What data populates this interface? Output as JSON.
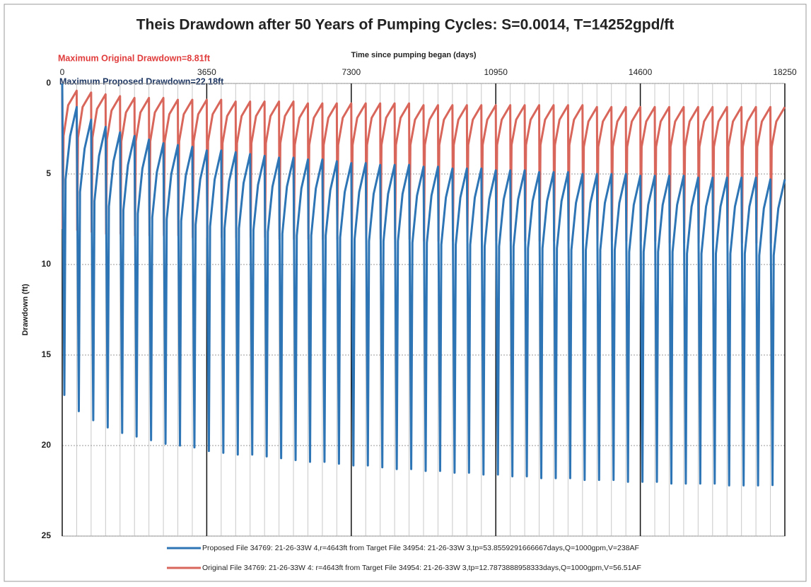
{
  "chart_data": {
    "type": "line",
    "title": "Theis Drawdown after 50 Years of Pumping Cycles: S=0.0014, T=14252gpd/ft",
    "x_label": "Time since pumping began (days)",
    "y_label": "Drawdown (ft)",
    "annotations": [
      {
        "text": "Maximum Original Drawdown=8.81ft",
        "color": "#e03c3c"
      },
      {
        "text": "Maximum Proposed Drawdown=22.18ft",
        "color": "#1f3864"
      }
    ],
    "xlim": [
      0,
      18250
    ],
    "xticks": [
      0,
      3650,
      7300,
      10950,
      14600,
      18250
    ],
    "ylim": [
      25,
      0
    ],
    "yticks": [
      0,
      5,
      10,
      15,
      20,
      25
    ],
    "grid": true,
    "minor_grid_interval": 365,
    "legend": "bottom",
    "series": [
      {
        "name": "Proposed File 34769: 21-26-33W  4,r=4643ft from Target File 34954: 21-26-33W 3,tp=53.8559291666667days,Q=1000gpm,V=238AF",
        "color": "#2e75b6",
        "x": [
          0,
          54,
          84,
          200,
          365,
          419,
          449,
          565,
          730,
          784,
          814,
          930,
          1095,
          1149,
          1179,
          1295,
          1460,
          1514,
          1544,
          1660,
          1825,
          1879,
          1909,
          2025,
          2190,
          2244,
          2274,
          2390,
          2555,
          2609,
          2639,
          2755,
          2920,
          2974,
          3004,
          3120,
          3285,
          3339,
          3369,
          3485,
          3650,
          3704,
          3734,
          3850,
          4015,
          4069,
          4099,
          4215,
          4380,
          4434,
          4464,
          4580,
          4745,
          4799,
          4829,
          4945,
          5110,
          5164,
          5194,
          5310,
          5475,
          5529,
          5559,
          5675,
          5840,
          5894,
          5924,
          6040,
          6205,
          6259,
          6289,
          6405,
          6570,
          6624,
          6654,
          6770,
          6935,
          6989,
          7019,
          7135,
          7300,
          7354,
          7384,
          7500,
          7665,
          7719,
          7749,
          7865,
          8030,
          8084,
          8114,
          8230,
          8395,
          8449,
          8479,
          8595,
          8760,
          8814,
          8844,
          8960,
          9125,
          9179,
          9209,
          9325,
          9490,
          9544,
          9574,
          9690,
          9855,
          9909,
          9939,
          10055,
          10220,
          10274,
          10304,
          10420,
          10585,
          10639,
          10669,
          10785,
          10950,
          11004,
          11034,
          11150,
          11315,
          11369,
          11399,
          11515,
          11680,
          11734,
          11764,
          11880,
          12045,
          12099,
          12129,
          12245,
          12410,
          12464,
          12494,
          12610,
          12775,
          12829,
          12859,
          12975,
          13140,
          13194,
          13224,
          13340,
          13505,
          13559,
          13589,
          13705,
          13870,
          13924,
          13954,
          14070,
          14235,
          14289,
          14319,
          14435,
          14600,
          14654,
          14684,
          14800,
          14965,
          15019,
          15049,
          15165,
          15330,
          15384,
          15414,
          15530,
          15695,
          15749,
          15779,
          15895,
          16060,
          16114,
          16144,
          16260,
          16425,
          16479,
          16509,
          16625,
          16790,
          16844,
          16874,
          16990,
          17155,
          17209,
          17239,
          17355,
          17520,
          17574,
          17604,
          17720,
          17885,
          17939,
          17969,
          18085,
          18250
        ],
        "values": [
          0,
          17.2,
          5.3,
          2.9,
          1.3,
          18.1,
          6.0,
          3.6,
          2.0,
          18.6,
          6.5,
          4.0,
          2.4,
          19.0,
          6.8,
          4.3,
          2.7,
          19.3,
          7.0,
          4.5,
          2.9,
          19.5,
          7.2,
          4.7,
          3.1,
          19.7,
          7.4,
          4.9,
          3.3,
          19.9,
          7.5,
          5.0,
          3.4,
          20.0,
          7.6,
          5.1,
          3.5,
          20.1,
          7.8,
          5.3,
          3.7,
          20.3,
          7.9,
          5.3,
          3.7,
          20.4,
          8.0,
          5.4,
          3.8,
          20.5,
          8.0,
          5.5,
          3.9,
          20.5,
          8.1,
          5.6,
          4.0,
          20.6,
          8.2,
          5.7,
          4.1,
          20.7,
          8.3,
          5.7,
          4.1,
          20.8,
          8.4,
          5.8,
          4.2,
          20.9,
          8.4,
          5.8,
          4.2,
          20.9,
          8.4,
          5.9,
          4.3,
          21.0,
          8.5,
          6.0,
          4.4,
          21.1,
          8.6,
          6.0,
          4.4,
          21.1,
          8.7,
          6.1,
          4.5,
          21.2,
          8.7,
          6.1,
          4.5,
          21.3,
          8.7,
          6.1,
          4.5,
          21.3,
          8.8,
          6.2,
          4.6,
          21.4,
          8.8,
          6.2,
          4.6,
          21.4,
          8.9,
          6.3,
          4.7,
          21.5,
          8.9,
          6.3,
          4.7,
          21.5,
          8.9,
          6.3,
          4.7,
          21.6,
          9.0,
          6.4,
          4.8,
          21.6,
          9.0,
          6.4,
          4.8,
          21.7,
          9.0,
          6.4,
          4.8,
          21.7,
          9.1,
          6.5,
          4.9,
          21.8,
          9.1,
          6.5,
          4.9,
          21.8,
          9.1,
          6.5,
          4.9,
          21.8,
          9.2,
          6.6,
          5.0,
          21.9,
          9.2,
          6.6,
          5.0,
          21.9,
          9.2,
          6.6,
          5.0,
          21.9,
          9.2,
          6.6,
          5.0,
          22.0,
          9.3,
          6.7,
          5.1,
          22.0,
          9.3,
          6.7,
          5.1,
          22.0,
          9.3,
          6.7,
          5.1,
          22.1,
          9.3,
          6.7,
          5.1,
          22.1,
          9.4,
          6.8,
          5.2,
          22.1,
          9.4,
          6.8,
          5.2,
          22.1,
          9.4,
          6.8,
          5.2,
          22.2,
          9.4,
          6.8,
          5.2,
          22.2,
          9.4,
          6.8,
          5.2,
          22.2,
          9.5,
          6.9,
          5.3,
          22.18,
          9.5,
          6.9,
          5.3
        ]
      },
      {
        "name": "Original File 34769: 21-26-33W  4: r=4643ft from Target File 34954: 21-26-33W 3,tp=12.7873888958333days,Q=1000gpm,V=56.51AF",
        "color": "#d9665b",
        "x": [
          0,
          13,
          33,
          150,
          365,
          378,
          398,
          515,
          730,
          743,
          763,
          880,
          1095,
          1108,
          1128,
          1245,
          1460,
          1473,
          1493,
          1610,
          1825,
          1838,
          1858,
          1975,
          2190,
          2203,
          2223,
          2340,
          2555,
          2568,
          2588,
          2705,
          2920,
          2933,
          2953,
          3070,
          3285,
          3298,
          3318,
          3435,
          3650,
          3663,
          3683,
          3800,
          4015,
          4028,
          4048,
          4165,
          4380,
          4393,
          4413,
          4530,
          4745,
          4758,
          4778,
          4895,
          5110,
          5123,
          5143,
          5260,
          5475,
          5488,
          5508,
          5625,
          5840,
          5853,
          5873,
          5990,
          6205,
          6218,
          6238,
          6355,
          6570,
          6583,
          6603,
          6720,
          6935,
          6948,
          6968,
          7085,
          7300,
          7313,
          7333,
          7450,
          7665,
          7678,
          7698,
          7815,
          8030,
          8043,
          8063,
          8180,
          8395,
          8408,
          8428,
          8545,
          8760,
          8773,
          8793,
          8910,
          9125,
          9138,
          9158,
          9275,
          9490,
          9503,
          9523,
          9640,
          9855,
          9868,
          9888,
          10005,
          10220,
          10233,
          10253,
          10370,
          10585,
          10598,
          10618,
          10735,
          10950,
          10963,
          10983,
          11100,
          11315,
          11328,
          11348,
          11465,
          11680,
          11693,
          11713,
          11830,
          12045,
          12058,
          12078,
          12195,
          12410,
          12423,
          12443,
          12560,
          12775,
          12788,
          12808,
          12925,
          13140,
          13153,
          13173,
          13290,
          13505,
          13518,
          13538,
          13655,
          13870,
          13883,
          13903,
          14020,
          14235,
          14248,
          14268,
          14385,
          14600,
          14613,
          14633,
          14750,
          14965,
          14978,
          14998,
          15115,
          15330,
          15343,
          15363,
          15480,
          15695,
          15708,
          15728,
          15845,
          16060,
          16073,
          16093,
          16210,
          16425,
          16438,
          16458,
          16575,
          16790,
          16803,
          16823,
          16940,
          17155,
          17168,
          17188,
          17305,
          17520,
          17533,
          17553,
          17670,
          17885,
          17898,
          17918,
          18035,
          18250
        ],
        "values": [
          0,
          8.0,
          2.9,
          1.2,
          0.4,
          8.1,
          3.0,
          1.3,
          0.5,
          8.2,
          3.0,
          1.4,
          0.6,
          8.3,
          3.1,
          1.5,
          0.7,
          8.3,
          3.2,
          1.6,
          0.8,
          8.4,
          3.2,
          1.6,
          0.8,
          8.4,
          3.2,
          1.6,
          0.8,
          8.4,
          3.2,
          1.7,
          0.9,
          8.4,
          3.2,
          1.7,
          0.9,
          8.5,
          3.2,
          1.7,
          0.9,
          8.5,
          3.2,
          1.7,
          0.9,
          8.5,
          3.3,
          1.8,
          1.0,
          8.5,
          3.3,
          1.8,
          1.0,
          8.5,
          3.3,
          1.8,
          1.0,
          8.5,
          3.3,
          1.8,
          1.0,
          8.6,
          3.3,
          1.8,
          1.0,
          8.6,
          3.4,
          1.9,
          1.1,
          8.6,
          3.4,
          1.9,
          1.1,
          8.6,
          3.4,
          1.9,
          1.1,
          8.6,
          3.4,
          1.9,
          1.1,
          8.6,
          3.4,
          1.9,
          1.1,
          8.6,
          3.4,
          1.9,
          1.1,
          8.6,
          3.4,
          1.9,
          1.1,
          8.6,
          3.4,
          1.9,
          1.1,
          8.6,
          3.4,
          2.0,
          1.2,
          8.7,
          3.4,
          2.0,
          1.2,
          8.7,
          3.4,
          2.0,
          1.2,
          8.7,
          3.4,
          2.0,
          1.2,
          8.7,
          3.4,
          2.0,
          1.2,
          8.7,
          3.4,
          2.0,
          1.2,
          8.7,
          3.4,
          2.0,
          1.2,
          8.7,
          3.4,
          2.0,
          1.2,
          8.7,
          3.4,
          2.0,
          1.2,
          8.7,
          3.4,
          2.0,
          1.2,
          8.7,
          3.4,
          2.0,
          1.2,
          8.7,
          3.4,
          2.0,
          1.2,
          8.7,
          3.5,
          2.1,
          1.3,
          8.7,
          3.5,
          2.1,
          1.3,
          8.7,
          3.5,
          2.1,
          1.3,
          8.7,
          3.5,
          2.1,
          1.3,
          8.7,
          3.5,
          2.1,
          1.3,
          8.7,
          3.5,
          2.1,
          1.3,
          8.8,
          3.5,
          2.1,
          1.3,
          8.8,
          3.5,
          2.1,
          1.3,
          8.8,
          3.5,
          2.1,
          1.3,
          8.8,
          3.5,
          2.1,
          1.3,
          8.8,
          3.5,
          2.1,
          1.3,
          8.8,
          3.5,
          2.1,
          1.3,
          8.8,
          3.5,
          2.1,
          1.3,
          8.81,
          3.5,
          2.1,
          1.3
        ]
      }
    ]
  }
}
